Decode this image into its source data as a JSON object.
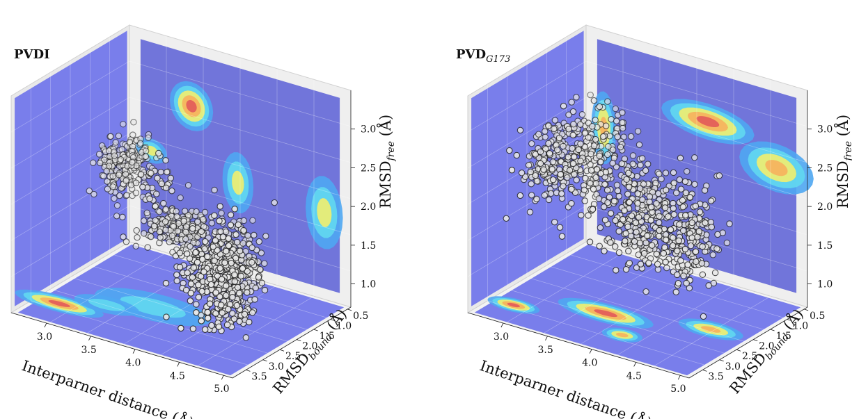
{
  "colors": {
    "wall": "#6f74ea",
    "wall_dark": "#5a5fd6",
    "cyan": "#62d8f0",
    "lightblue": "#4fa7f2",
    "yellow": "#f2ee6e",
    "orange": "#f6b15d",
    "red": "#e25a5a",
    "point_fill": "#e8e8e8",
    "point_edge": "#2b2b2b"
  },
  "chart_data": [
    {
      "type": "scatter3d",
      "title_main": "PVDI",
      "title_sub": "",
      "xlabel": "Interparner distance (Å)",
      "ylabel_main": "RMSD",
      "ylabel_sub": "bound",
      "ylabel_unit": " (Å)",
      "zlabel_main": "RMSD",
      "zlabel_sub": "free",
      "zlabel_unit": " (Å)",
      "xticks": [
        "3.0",
        "3.5",
        "4.0",
        "4.5",
        "5.0"
      ],
      "yticks": [
        "0.5",
        "1.0",
        "1.5",
        "2.0",
        "2.5",
        "3.0",
        "3.5"
      ],
      "zticks": [
        "1.0",
        "1.5",
        "2.0",
        "2.5",
        "3.0"
      ],
      "xlim": [
        2.6,
        5.1
      ],
      "ylim": [
        0.4,
        3.9
      ],
      "zlim": [
        0.7,
        3.5
      ],
      "clusters": [
        {
          "x": 2.85,
          "y": 1.2,
          "z": 2.0,
          "sx": 0.12,
          "sy": 0.25,
          "sz": 0.18,
          "n": 240
        },
        {
          "x": 3.6,
          "y": 1.6,
          "z": 1.55,
          "sx": 0.18,
          "sy": 0.25,
          "sz": 0.12,
          "n": 200
        },
        {
          "x": 4.3,
          "y": 2.3,
          "z": 1.4,
          "sx": 0.18,
          "sy": 0.4,
          "sz": 0.25,
          "n": 320
        },
        {
          "x": 4.7,
          "y": 2.9,
          "z": 1.6,
          "sx": 0.12,
          "sy": 0.35,
          "sz": 0.35,
          "n": 260
        },
        {
          "x": 3.7,
          "y": 2.5,
          "z": 2.3,
          "sx": 0.08,
          "sy": 0.15,
          "sz": 0.25,
          "n": 35
        }
      ],
      "back_wall_contours": [
        {
          "u": 0.28,
          "v": 0.29,
          "ru": 0.07,
          "rv": 0.08,
          "levels": 4
        },
        {
          "u": 0.49,
          "v": 0.58,
          "ru": 0.05,
          "rv": 0.1,
          "levels": 2
        },
        {
          "u": 0.88,
          "v": 0.6,
          "ru": 0.06,
          "rv": 0.12,
          "levels": 2
        },
        {
          "u": 0.1,
          "v": 0.55,
          "ru": 0.05,
          "rv": 0.04,
          "levels": 2
        }
      ],
      "floor_contours": [
        {
          "u": 0.1,
          "v": 0.78,
          "ru": 0.14,
          "rv": 0.06,
          "levels": 4
        },
        {
          "u": 0.4,
          "v": 0.55,
          "ru": 0.18,
          "rv": 0.1,
          "levels": 1
        },
        {
          "u": 0.25,
          "v": 0.66,
          "ru": 0.1,
          "rv": 0.06,
          "levels": 1
        }
      ]
    },
    {
      "type": "scatter3d",
      "title_main": "PVD",
      "title_sub": "G173",
      "xlabel": "Interparner distance (Å)",
      "ylabel_main": "RMSD",
      "ylabel_sub": "bound",
      "ylabel_unit": " (Å)",
      "zlabel_main": "RMSD",
      "zlabel_sub": "free",
      "zlabel_unit": " (Å)",
      "xticks": [
        "3.0",
        "3.5",
        "4.0",
        "4.5",
        "5.0"
      ],
      "yticks": [
        "0.5",
        "1.0",
        "1.5",
        "2.0",
        "2.5",
        "3.0",
        "3.5"
      ],
      "zticks": [
        "1.0",
        "1.5",
        "2.0",
        "2.5",
        "3.0"
      ],
      "xlim": [
        2.6,
        5.1
      ],
      "ylim": [
        0.4,
        3.9
      ],
      "zlim": [
        0.7,
        3.5
      ],
      "clusters": [
        {
          "x": 2.8,
          "y": 2.0,
          "z": 2.25,
          "sx": 0.1,
          "sy": 0.35,
          "sz": 0.25,
          "n": 180
        },
        {
          "x": 3.35,
          "y": 2.2,
          "z": 2.5,
          "sx": 0.18,
          "sy": 0.4,
          "sz": 0.3,
          "n": 250
        },
        {
          "x": 4.0,
          "y": 2.4,
          "z": 2.0,
          "sx": 0.15,
          "sy": 0.35,
          "sz": 0.3,
          "n": 260
        },
        {
          "x": 4.6,
          "y": 2.6,
          "z": 2.05,
          "sx": 0.12,
          "sy": 0.3,
          "sz": 0.35,
          "n": 200
        }
      ],
      "back_wall_contours": [
        {
          "u": 0.55,
          "v": 0.28,
          "ru": 0.15,
          "rv": 0.06,
          "levels": 4
        },
        {
          "u": 0.86,
          "v": 0.4,
          "ru": 0.12,
          "rv": 0.08,
          "levels": 3
        },
        {
          "u": 0.08,
          "v": 0.45,
          "ru": 0.04,
          "rv": 0.12,
          "levels": 3
        }
      ],
      "floor_contours": [
        {
          "u": 0.1,
          "v": 0.8,
          "ru": 0.08,
          "rv": 0.05,
          "levels": 4
        },
        {
          "u": 0.42,
          "v": 0.62,
          "ru": 0.15,
          "rv": 0.07,
          "levels": 4
        },
        {
          "u": 0.58,
          "v": 0.78,
          "ru": 0.06,
          "rv": 0.05,
          "levels": 3
        },
        {
          "u": 0.82,
          "v": 0.48,
          "ru": 0.1,
          "rv": 0.06,
          "levels": 3
        }
      ]
    }
  ]
}
